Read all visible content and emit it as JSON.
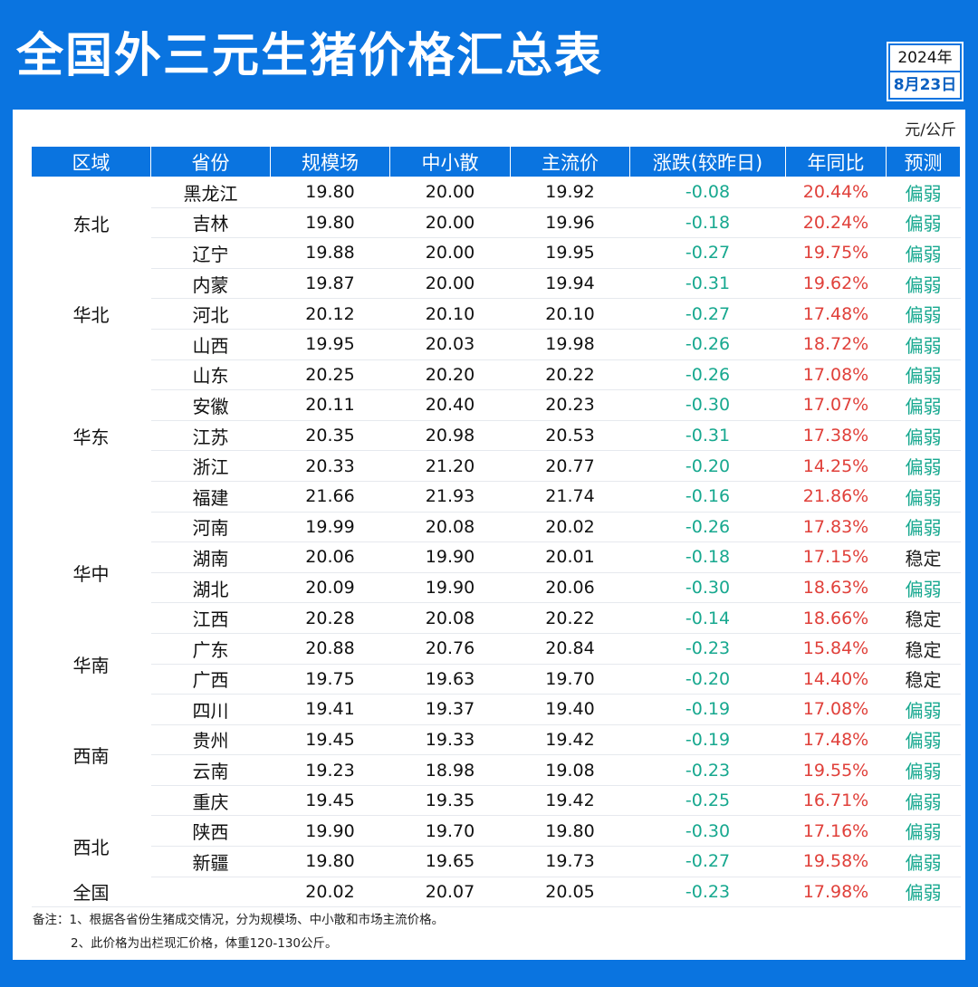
{
  "title": "全国外三元生猪价格汇总表",
  "date": {
    "year": "2024年",
    "day": "8月23日"
  },
  "unit": "元/公斤",
  "headers": [
    "区域",
    "省份",
    "规模场",
    "中小散",
    "主流价",
    "涨跌(较昨日)",
    "年同比",
    "预测"
  ],
  "regions": [
    {
      "name": "东北",
      "rows": [
        {
          "province": "黑龙江",
          "scale": "19.80",
          "small": "20.00",
          "main": "19.92",
          "change": "-0.08",
          "yoy": "20.44%",
          "forecast": "偏弱"
        },
        {
          "province": "吉林",
          "scale": "19.80",
          "small": "20.00",
          "main": "19.96",
          "change": "-0.18",
          "yoy": "20.24%",
          "forecast": "偏弱"
        },
        {
          "province": "辽宁",
          "scale": "19.88",
          "small": "20.00",
          "main": "19.95",
          "change": "-0.27",
          "yoy": "19.75%",
          "forecast": "偏弱"
        }
      ]
    },
    {
      "name": "华北",
      "rows": [
        {
          "province": "内蒙",
          "scale": "19.87",
          "small": "20.00",
          "main": "19.94",
          "change": "-0.31",
          "yoy": "19.62%",
          "forecast": "偏弱"
        },
        {
          "province": "河北",
          "scale": "20.12",
          "small": "20.10",
          "main": "20.10",
          "change": "-0.27",
          "yoy": "17.48%",
          "forecast": "偏弱"
        },
        {
          "province": "山西",
          "scale": "19.95",
          "small": "20.03",
          "main": "19.98",
          "change": "-0.26",
          "yoy": "18.72%",
          "forecast": "偏弱"
        }
      ]
    },
    {
      "name": "华东",
      "rows": [
        {
          "province": "山东",
          "scale": "20.25",
          "small": "20.20",
          "main": "20.22",
          "change": "-0.26",
          "yoy": "17.08%",
          "forecast": "偏弱"
        },
        {
          "province": "安徽",
          "scale": "20.11",
          "small": "20.40",
          "main": "20.23",
          "change": "-0.30",
          "yoy": "17.07%",
          "forecast": "偏弱"
        },
        {
          "province": "江苏",
          "scale": "20.35",
          "small": "20.98",
          "main": "20.53",
          "change": "-0.31",
          "yoy": "17.38%",
          "forecast": "偏弱"
        },
        {
          "province": "浙江",
          "scale": "20.33",
          "small": "21.20",
          "main": "20.77",
          "change": "-0.20",
          "yoy": "14.25%",
          "forecast": "偏弱"
        },
        {
          "province": "福建",
          "scale": "21.66",
          "small": "21.93",
          "main": "21.74",
          "change": "-0.16",
          "yoy": "21.86%",
          "forecast": "偏弱"
        }
      ]
    },
    {
      "name": "华中",
      "rows": [
        {
          "province": "河南",
          "scale": "19.99",
          "small": "20.08",
          "main": "20.02",
          "change": "-0.26",
          "yoy": "17.83%",
          "forecast": "偏弱"
        },
        {
          "province": "湖南",
          "scale": "20.06",
          "small": "19.90",
          "main": "20.01",
          "change": "-0.18",
          "yoy": "17.15%",
          "forecast": "稳定"
        },
        {
          "province": "湖北",
          "scale": "20.09",
          "small": "19.90",
          "main": "20.06",
          "change": "-0.30",
          "yoy": "18.63%",
          "forecast": "偏弱"
        },
        {
          "province": "江西",
          "scale": "20.28",
          "small": "20.08",
          "main": "20.22",
          "change": "-0.14",
          "yoy": "18.66%",
          "forecast": "稳定"
        }
      ]
    },
    {
      "name": "华南",
      "rows": [
        {
          "province": "广东",
          "scale": "20.88",
          "small": "20.76",
          "main": "20.84",
          "change": "-0.23",
          "yoy": "15.84%",
          "forecast": "稳定"
        },
        {
          "province": "广西",
          "scale": "19.75",
          "small": "19.63",
          "main": "19.70",
          "change": "-0.20",
          "yoy": "14.40%",
          "forecast": "稳定"
        }
      ]
    },
    {
      "name": "西南",
      "rows": [
        {
          "province": "四川",
          "scale": "19.41",
          "small": "19.37",
          "main": "19.40",
          "change": "-0.19",
          "yoy": "17.08%",
          "forecast": "偏弱"
        },
        {
          "province": "贵州",
          "scale": "19.45",
          "small": "19.33",
          "main": "19.42",
          "change": "-0.19",
          "yoy": "17.48%",
          "forecast": "偏弱"
        },
        {
          "province": "云南",
          "scale": "19.23",
          "small": "18.98",
          "main": "19.08",
          "change": "-0.23",
          "yoy": "19.55%",
          "forecast": "偏弱"
        },
        {
          "province": "重庆",
          "scale": "19.45",
          "small": "19.35",
          "main": "19.42",
          "change": "-0.25",
          "yoy": "16.71%",
          "forecast": "偏弱"
        }
      ]
    },
    {
      "name": "西北",
      "rows": [
        {
          "province": "陕西",
          "scale": "19.90",
          "small": "19.70",
          "main": "19.80",
          "change": "-0.30",
          "yoy": "17.16%",
          "forecast": "偏弱"
        },
        {
          "province": "新疆",
          "scale": "19.80",
          "small": "19.65",
          "main": "19.73",
          "change": "-0.27",
          "yoy": "19.58%",
          "forecast": "偏弱"
        }
      ]
    }
  ],
  "national": {
    "label": "全国",
    "scale": "20.02",
    "small": "20.07",
    "main": "20.05",
    "change": "-0.23",
    "yoy": "17.98%",
    "forecast": "偏弱"
  },
  "notes": [
    "备注：1、根据各省份生猪成交情况，分为规模场、中小散和市场主流价格。",
    "2、此价格为出栏现汇价格，体重120-130公斤。"
  ],
  "colors": {
    "background": "#0a74e0",
    "down": "#17a88f",
    "yoy": "#e0403a",
    "weak": "#17a88f",
    "stable": "#222222"
  }
}
